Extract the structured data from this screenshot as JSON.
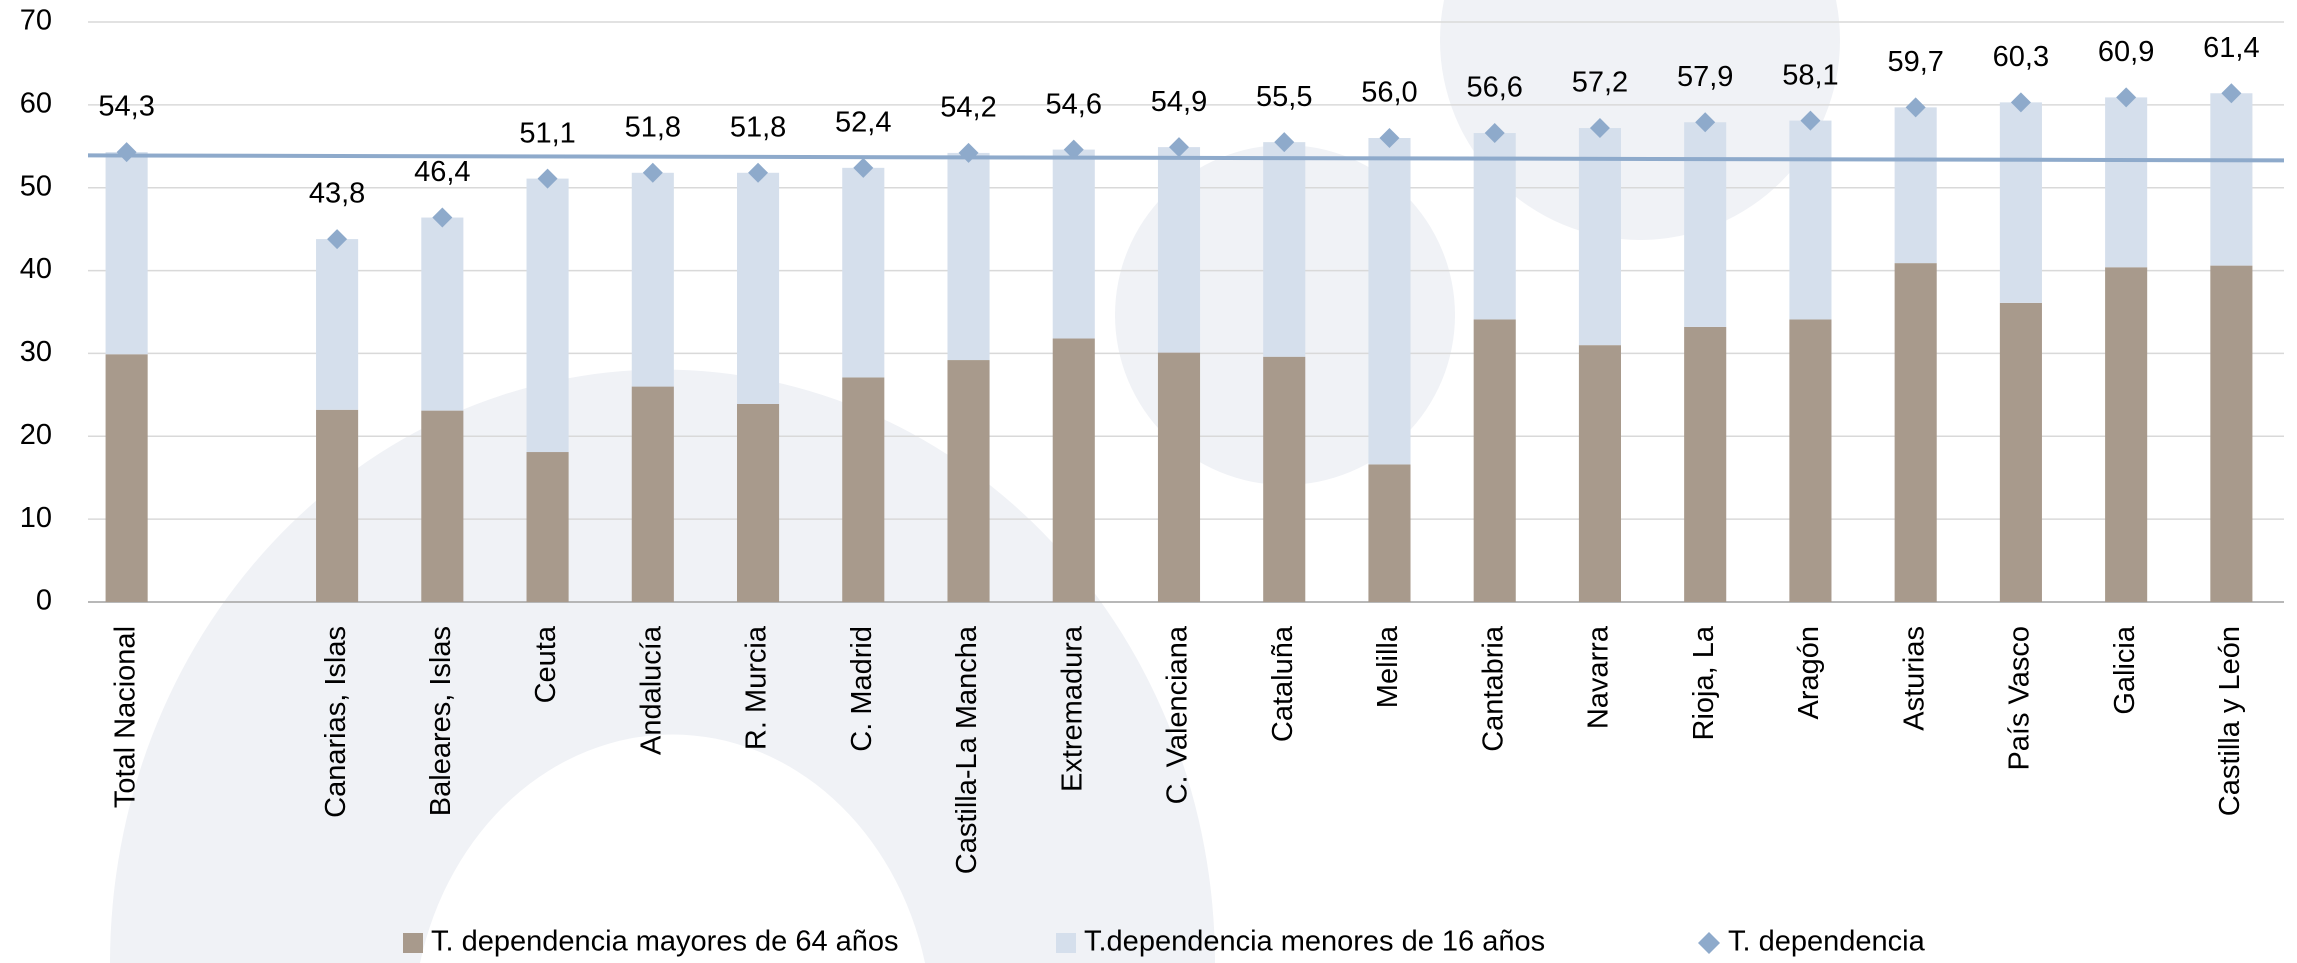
{
  "chart_data": {
    "type": "bar",
    "stacked": true,
    "categories": [
      "Total Nacional",
      null,
      "Canarias, Islas",
      "Baleares, Islas",
      "Ceuta",
      "Andalucía",
      "R. Murcia",
      "C. Madrid",
      "Castilla-La Mancha",
      "Extremadura",
      "C. Valenciana",
      "Cataluña",
      "Melilla",
      "Cantabria",
      "Navarra",
      "Rioja, La",
      "Aragón",
      "Asturias",
      "País Vasco",
      "Galicia",
      "Castilla y León"
    ],
    "series": [
      {
        "name": "T. dependencia mayores de 64 años",
        "color": "#a89a8c",
        "kind": "bar",
        "values": [
          29.9,
          null,
          23.2,
          23.1,
          18.1,
          26.0,
          23.9,
          27.1,
          29.2,
          31.8,
          30.1,
          29.6,
          16.6,
          34.1,
          31.0,
          33.2,
          34.1,
          40.9,
          36.1,
          40.4,
          40.6
        ]
      },
      {
        "name": "T.dependencia menores de 16 años",
        "color": "#d5dfec",
        "kind": "bar",
        "values": [
          24.4,
          null,
          20.6,
          23.3,
          33.0,
          25.8,
          27.9,
          25.3,
          25.0,
          22.8,
          24.8,
          25.9,
          39.4,
          22.5,
          26.2,
          24.7,
          24.0,
          18.8,
          24.2,
          20.5,
          20.8
        ]
      },
      {
        "name": "T. dependencia",
        "color": "#8eaacb",
        "kind": "diamond",
        "values": [
          54.3,
          null,
          43.8,
          46.4,
          51.1,
          51.8,
          51.8,
          52.4,
          54.2,
          54.6,
          54.9,
          55.5,
          56.0,
          56.6,
          57.2,
          57.9,
          58.1,
          59.7,
          60.3,
          60.9,
          61.4
        ],
        "value_labels": [
          "54,3",
          null,
          "43,8",
          "46,4",
          "51,1",
          "51,8",
          "51,8",
          "52,4",
          "54,2",
          "54,6",
          "54,9",
          "55,5",
          "56,0",
          "56,6",
          "57,2",
          "57,9",
          "58,1",
          "59,7",
          "60,3",
          "60,9",
          "61,4"
        ]
      }
    ],
    "reference_line": {
      "values": [
        53.9,
        53.3
      ],
      "color": "#8eaacb"
    },
    "ylim": [
      0,
      70
    ],
    "yticks": [
      0,
      10,
      20,
      30,
      40,
      50,
      60,
      70
    ],
    "grid": true
  }
}
